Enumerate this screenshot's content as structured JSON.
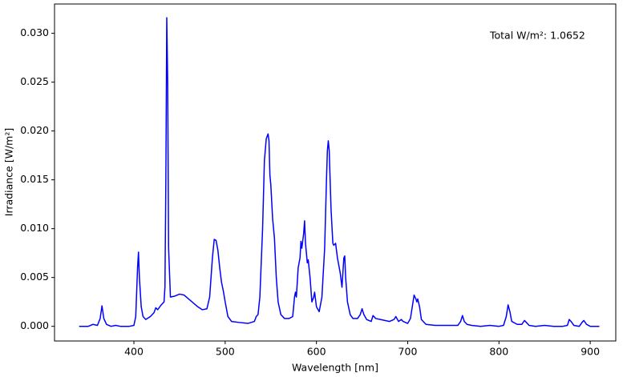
{
  "chart_data": {
    "type": "line",
    "xlabel": "Wavelength [nm]",
    "ylabel": "Irradiance [W/m²]",
    "annotation": "Total W/m²: 1.0652",
    "color": "#0000ff",
    "xlim": [
      313,
      928
    ],
    "xticks": [
      400,
      500,
      600,
      700,
      800,
      900
    ],
    "ylim": [
      -0.0015,
      0.033
    ],
    "yticks": [
      {
        "value": 0,
        "label": "0.000"
      },
      {
        "value": 0.005,
        "label": "0.005"
      },
      {
        "value": 0.01,
        "label": "0.010"
      },
      {
        "value": 0.015,
        "label": "0.015"
      },
      {
        "value": 0.02,
        "label": "0.020"
      },
      {
        "value": 0.025,
        "label": "0.025"
      },
      {
        "value": 0.03,
        "label": "0.030"
      }
    ],
    "grid": false,
    "x": [
      340,
      350,
      355,
      360,
      363,
      365,
      367,
      370,
      375,
      380,
      385,
      395,
      400,
      402,
      404,
      405,
      406,
      408,
      410,
      413,
      418,
      422,
      424,
      426,
      430,
      433,
      434,
      435,
      436,
      437,
      438,
      440,
      445,
      450,
      455,
      460,
      465,
      470,
      475,
      480,
      483,
      486,
      488,
      490,
      492,
      494,
      496,
      498,
      500,
      503,
      507,
      515,
      525,
      532,
      534,
      536,
      538,
      541,
      543,
      545,
      547,
      548,
      549,
      550,
      552,
      554,
      556,
      558,
      561,
      565,
      570,
      574,
      576,
      577,
      578,
      580,
      582,
      583,
      584,
      586,
      587,
      588,
      590,
      591,
      593,
      595,
      597,
      598,
      600,
      603,
      606,
      609,
      611,
      612,
      613,
      614,
      616,
      618,
      619,
      621,
      623,
      626,
      628,
      630,
      631,
      632,
      634,
      637,
      640,
      645,
      648,
      650,
      652,
      655,
      660,
      662,
      665,
      670,
      680,
      685,
      687,
      690,
      693,
      695,
      700,
      703,
      705,
      707,
      709,
      710,
      711,
      713,
      715,
      720,
      730,
      745,
      755,
      758,
      760,
      762,
      765,
      770,
      780,
      790,
      800,
      805,
      808,
      810,
      812,
      814,
      820,
      825,
      828,
      830,
      833,
      840,
      850,
      860,
      870,
      875,
      877,
      879,
      882,
      888,
      891,
      893,
      896,
      900,
      910
    ],
    "values": [
      0,
      0,
      0.0002,
      0.0001,
      0.0008,
      0.0021,
      0.0008,
      0.0002,
      0,
      0.0001,
      0,
      0,
      0.0001,
      0.001,
      0.006,
      0.0076,
      0.005,
      0.002,
      0.001,
      0.0007,
      0.001,
      0.0014,
      0.0019,
      0.0017,
      0.0022,
      0.0025,
      0.004,
      0.015,
      0.0316,
      0.025,
      0.008,
      0.003,
      0.0031,
      0.0033,
      0.0032,
      0.0028,
      0.0024,
      0.002,
      0.0017,
      0.0018,
      0.003,
      0.007,
      0.0089,
      0.0088,
      0.0078,
      0.006,
      0.0045,
      0.0036,
      0.0025,
      0.001,
      0.0005,
      0.0004,
      0.0003,
      0.0005,
      0.001,
      0.0012,
      0.003,
      0.01,
      0.017,
      0.0192,
      0.0197,
      0.019,
      0.0155,
      0.0145,
      0.011,
      0.009,
      0.005,
      0.0025,
      0.0012,
      0.0008,
      0.0008,
      0.001,
      0.003,
      0.0035,
      0.003,
      0.006,
      0.007,
      0.0087,
      0.008,
      0.0095,
      0.0108,
      0.0085,
      0.0065,
      0.0068,
      0.005,
      0.0025,
      0.003,
      0.0035,
      0.002,
      0.0015,
      0.003,
      0.008,
      0.015,
      0.018,
      0.019,
      0.018,
      0.012,
      0.0085,
      0.0083,
      0.0085,
      0.007,
      0.0055,
      0.004,
      0.007,
      0.0072,
      0.005,
      0.0025,
      0.0012,
      0.0008,
      0.0008,
      0.0012,
      0.0018,
      0.0012,
      0.0007,
      0.0005,
      0.0011,
      0.0008,
      0.0007,
      0.0005,
      0.0007,
      0.001,
      0.0005,
      0.0007,
      0.0005,
      0.0003,
      0.0008,
      0.002,
      0.0032,
      0.0028,
      0.0025,
      0.0028,
      0.002,
      0.0007,
      0.0002,
      0.0001,
      0.0001,
      0.0001,
      0.0005,
      0.0011,
      0.0005,
      0.0002,
      0.0001,
      0,
      0.0001,
      0,
      0.0001,
      0.001,
      0.0022,
      0.0015,
      0.0005,
      0.0002,
      0.0002,
      0.0006,
      0.0004,
      0.0001,
      0,
      0.0001,
      0,
      0,
      0.0001,
      0.0007,
      0.0005,
      0.0001,
      0,
      0.0004,
      0.0006,
      0.0002,
      0,
      0
    ]
  }
}
